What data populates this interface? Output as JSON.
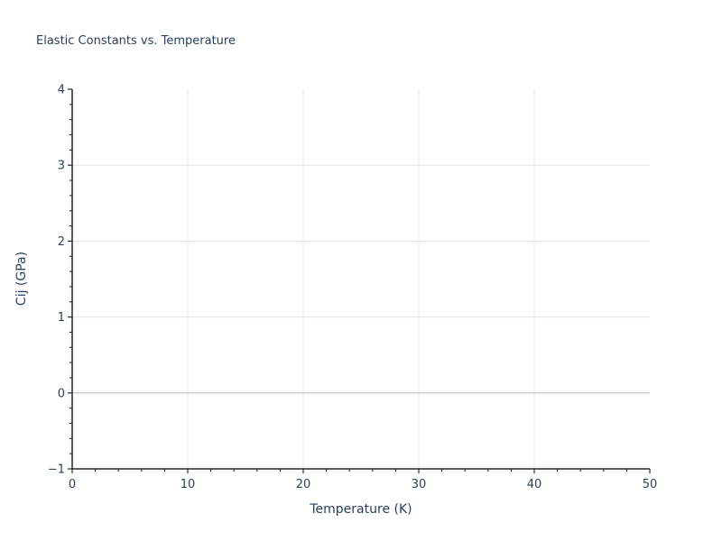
{
  "chart": {
    "title": "Elastic Constants vs. Temperature",
    "xlabel": "Temperature (K)",
    "ylabel": "Cij (GPa)"
  },
  "chart_data": {
    "type": "line",
    "title": "Elastic Constants vs. Temperature",
    "xlabel": "Temperature (K)",
    "ylabel": "Cij (GPa)",
    "xlim": [
      0,
      50
    ],
    "ylim": [
      -1,
      4
    ],
    "x_major_ticks": [
      0,
      10,
      20,
      30,
      40,
      50
    ],
    "x_tick_labels": [
      "0",
      "10",
      "20",
      "30",
      "40",
      "50"
    ],
    "x_minor_step": 2,
    "y_major_ticks": [
      -1,
      0,
      1,
      2,
      3,
      4
    ],
    "y_tick_labels": [
      "−1",
      "0",
      "1",
      "2",
      "3",
      "4"
    ],
    "y_minor_step": 0.2,
    "x_gridlines": [
      10,
      20,
      30,
      40
    ],
    "y_gridlines": [
      1,
      2,
      3
    ],
    "zero_line_y": 0,
    "grid": true,
    "legend": "none",
    "series": []
  },
  "style": {
    "background": "#ffffff",
    "text_color": "#2a3f5f",
    "axis_color": "#262626",
    "grid_color": "#e5e5e5",
    "zero_line_color": "#cccccc"
  }
}
